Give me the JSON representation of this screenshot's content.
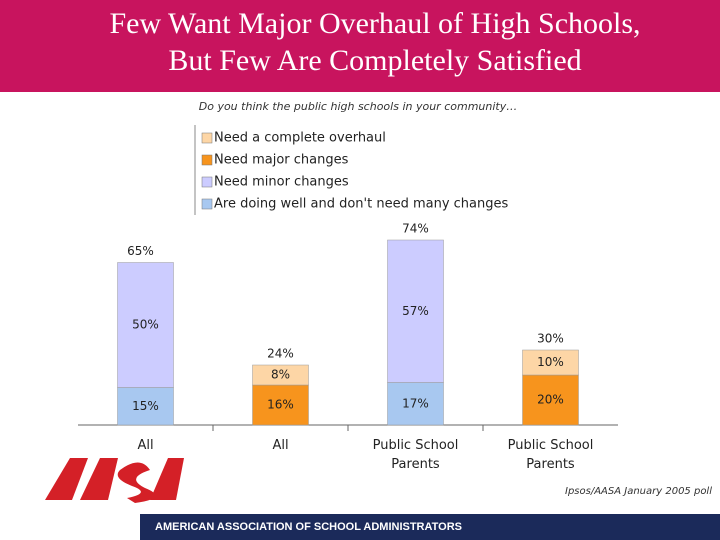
{
  "header": {
    "title_lines": [
      "Few Want Major Overhaul of High Schools,",
      "But Few Are Completely Satisfied"
    ]
  },
  "chart_data": {
    "type": "stacked-bar",
    "subtitle": "Do you think the public high schools in your community…",
    "categories": [
      "All",
      "All",
      "Public School Parents",
      "Public School Parents"
    ],
    "series": [
      {
        "name": "Need a complete overhaul",
        "color": "#fdd6a6",
        "values": [
          null,
          8,
          null,
          10
        ],
        "value_labels": [
          null,
          "8%",
          null,
          "10%"
        ]
      },
      {
        "name": "Need major changes",
        "color": "#f7941d",
        "values": [
          null,
          16,
          null,
          20
        ],
        "value_labels": [
          null,
          "16%",
          null,
          "20%"
        ]
      },
      {
        "name": "Need minor changes",
        "color": "#ccccff",
        "values": [
          50,
          null,
          57,
          null
        ],
        "value_labels": [
          "50%",
          null,
          "57%",
          null
        ]
      },
      {
        "name": "Are doing well and don't need many changes",
        "color": "#a8c8f0",
        "values": [
          15,
          null,
          17,
          null
        ],
        "value_labels": [
          "15%",
          null,
          "17%",
          null
        ]
      }
    ],
    "totals": [
      65,
      24,
      74,
      30
    ],
    "total_labels": [
      "65%",
      "24%",
      "74%",
      "30%"
    ]
  },
  "footer": {
    "source": "Ipsos/AASA January 2005 poll",
    "organization": "AMERICAN ASSOCIATION OF SCHOOL ADMINISTRATORS"
  }
}
